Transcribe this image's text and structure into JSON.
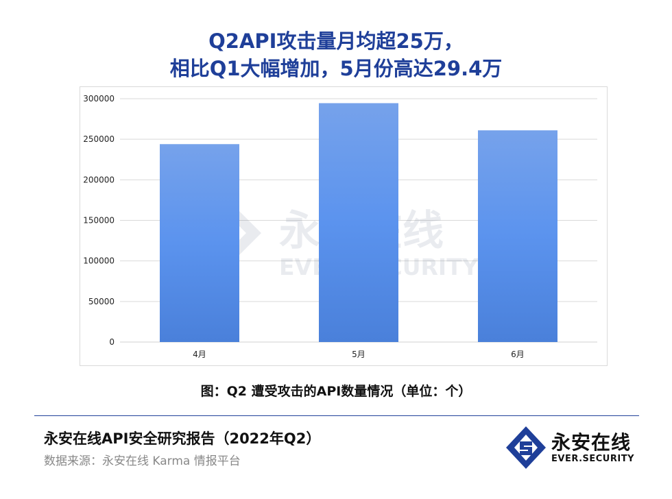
{
  "title": {
    "line1": "Q2API攻击量月均超25万，",
    "line2": "相比Q1大幅增加，5月份高达29.4万"
  },
  "chart_data": {
    "type": "bar",
    "categories": [
      "4月",
      "5月",
      "6月"
    ],
    "values": [
      244000,
      294500,
      261000
    ],
    "ylim": [
      0,
      300000
    ],
    "yticks": [
      0,
      50000,
      100000,
      150000,
      200000,
      250000,
      300000
    ],
    "grid": true,
    "bar_color": "#5b93e8",
    "watermark": {
      "cn": "永安在线",
      "en": "EVER.SECURITY"
    }
  },
  "caption": "图：Q2 遭受攻击的API数量情况（单位：个）",
  "footer": {
    "report_title": "永安在线API安全研究报告（2022年Q2）",
    "source": "数据来源：永安在线 Karma 情报平台"
  },
  "logo": {
    "cn": "永安在线",
    "en": "EVER.SECURITY",
    "color": "#1f3f99"
  }
}
